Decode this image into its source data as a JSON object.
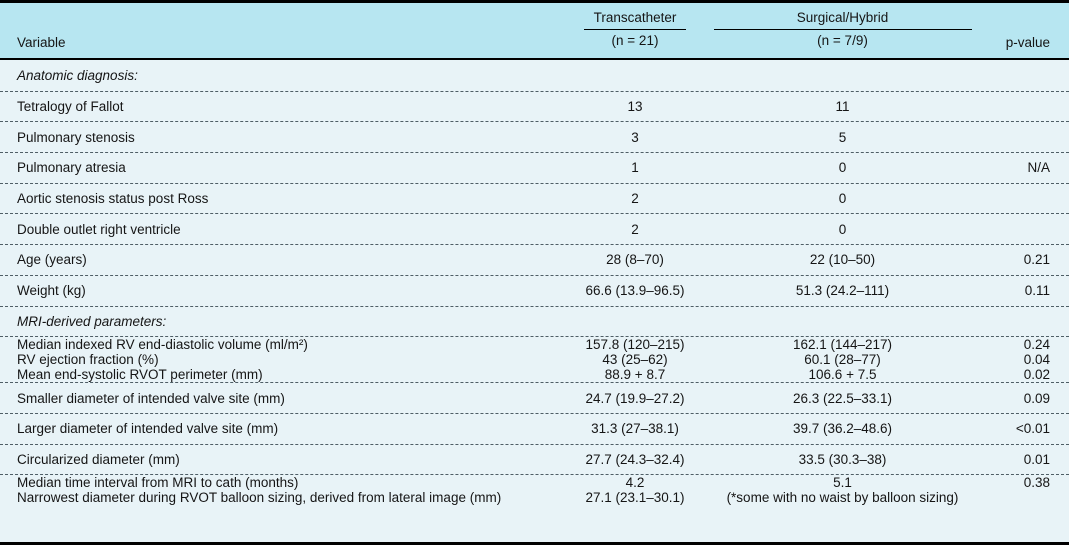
{
  "table": {
    "colors": {
      "header_bg": "#b7e6f1",
      "body_bg": "#e8f3f7",
      "rule": "#000000"
    },
    "columns": {
      "variable": "Variable",
      "group1": {
        "label": "Transcatheter",
        "n": "(n = 21)"
      },
      "group2": {
        "label": "Surgical/Hybrid",
        "n": "(n = 7/9)"
      },
      "pvalue": "p-value"
    },
    "rows": [
      {
        "type": "section",
        "label": "Anatomic diagnosis:",
        "g1": "",
        "g2": "",
        "p": ""
      },
      {
        "type": "single",
        "label": "Tetralogy of Fallot",
        "g1": "13",
        "g2": "11",
        "p": ""
      },
      {
        "type": "single",
        "label": "Pulmonary stenosis",
        "g1": "3",
        "g2": "5",
        "p": ""
      },
      {
        "type": "single",
        "label": "Pulmonary atresia",
        "g1": "1",
        "g2": "0",
        "p": "N/A"
      },
      {
        "type": "single",
        "label": "Aortic stenosis status post Ross",
        "g1": "2",
        "g2": "0",
        "p": ""
      },
      {
        "type": "single",
        "label": "Double outlet right ventricle",
        "g1": "2",
        "g2": "0",
        "p": ""
      },
      {
        "type": "single",
        "label": "Age (years)",
        "g1": "28 (8–70)",
        "g2": "22 (10–50)",
        "p": "0.21"
      },
      {
        "type": "single",
        "label": "Weight (kg)",
        "g1": "66.6 (13.9–96.5)",
        "g2": "51.3 (24.2–111)",
        "p": "0.11"
      },
      {
        "type": "section",
        "label": "MRI-derived parameters:",
        "g1": "",
        "g2": "",
        "p": ""
      },
      {
        "type": "multi",
        "lines": [
          {
            "label": "Median indexed RV end-diastolic volume (ml/m²)",
            "g1": "157.8 (120–215)",
            "g2": "162.1 (144–217)",
            "p": "0.24"
          },
          {
            "label": "RV ejection fraction (%)",
            "g1": "43 (25–62)",
            "g2": "60.1 (28–77)",
            "p": "0.04"
          },
          {
            "label": "Mean end-systolic RVOT perimeter (mm)",
            "g1": "88.9 + 8.7",
            "g2": "106.6 + 7.5",
            "p": "0.02"
          }
        ]
      },
      {
        "type": "single",
        "label": "Smaller diameter of intended valve site (mm)",
        "g1": "24.7 (19.9–27.2)",
        "g2": "26.3 (22.5–33.1)",
        "p": "0.09"
      },
      {
        "type": "single",
        "label": "Larger diameter of intended valve site (mm)",
        "g1": "31.3 (27–38.1)",
        "g2": "39.7 (36.2–48.6)",
        "p": "<0.01"
      },
      {
        "type": "single",
        "label": "Circularized diameter (mm)",
        "g1": "27.7 (24.3–32.4)",
        "g2": "33.5 (30.3–38)",
        "p": "0.01"
      },
      {
        "type": "multi",
        "lines": [
          {
            "label": "Median time interval from MRI to cath (months)",
            "g1": "4.2",
            "g2": "5.1",
            "p": "0.38"
          },
          {
            "label": "Narrowest diameter during RVOT balloon sizing, derived from lateral image (mm)",
            "g1": "27.1 (23.1–30.1)",
            "g2": "(*some with no waist by balloon sizing)",
            "p": ""
          }
        ]
      }
    ]
  }
}
